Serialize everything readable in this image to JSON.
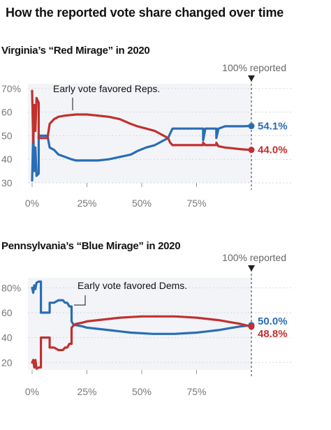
{
  "title": "How the reported vote share changed over time",
  "colors": {
    "rep": "#c0312f",
    "dem": "#2a6db4",
    "plot_bg": "#f2f4f8",
    "grid": "#d6d6d6"
  },
  "chart_data": [
    {
      "type": "line",
      "title": "Virginia’s “Red Mirage” in 2020",
      "reported_label": "100% reported",
      "annotation": "Early vote favored Reps.",
      "xlim": [
        0,
        100
      ],
      "ylim": [
        30,
        72
      ],
      "y_ticks": [
        30,
        40,
        50,
        60,
        70
      ],
      "y_tick_labels": [
        "30",
        "40",
        "50",
        "60",
        "70%"
      ],
      "x_ticks": [
        0,
        25,
        50,
        75
      ],
      "x_tick_labels": [
        "0%",
        "25%",
        "50%",
        "75%"
      ],
      "end_labels": [
        "54.1%",
        "44.0%"
      ],
      "series": [
        {
          "color": "dem",
          "end_value": 54.1,
          "points": [
            [
              0,
              31
            ],
            [
              0.5,
              52
            ],
            [
              1,
              35
            ],
            [
              1.5,
              45
            ],
            [
              2,
              33
            ],
            [
              3,
              34
            ],
            [
              3,
              50
            ],
            [
              7,
              50
            ],
            [
              8,
              45
            ],
            [
              10,
              44
            ],
            [
              12,
              42
            ],
            [
              15,
              41
            ],
            [
              18,
              40
            ],
            [
              20,
              39.5
            ],
            [
              30,
              39.5
            ],
            [
              35,
              40
            ],
            [
              40,
              41
            ],
            [
              45,
              42
            ],
            [
              48,
              43.5
            ],
            [
              52,
              45
            ],
            [
              56,
              46
            ],
            [
              58,
              47
            ],
            [
              60,
              48
            ],
            [
              62,
              49
            ],
            [
              63,
              51
            ],
            [
              64,
              53
            ],
            [
              78,
              53
            ],
            [
              78,
              48
            ],
            [
              79,
              53
            ],
            [
              84,
              53
            ],
            [
              84,
              49
            ],
            [
              85,
              53
            ],
            [
              88,
              54
            ],
            [
              96,
              54
            ],
            [
              100,
              54.1
            ]
          ]
        },
        {
          "color": "rep",
          "end_value": 44.0,
          "points": [
            [
              0,
              69
            ],
            [
              0.5,
              47
            ],
            [
              1,
              63
            ],
            [
              1.5,
              52
            ],
            [
              2,
              66
            ],
            [
              3,
              64
            ],
            [
              3,
              49
            ],
            [
              7,
              49
            ],
            [
              8,
              55
            ],
            [
              10,
              57
            ],
            [
              12,
              58
            ],
            [
              15,
              58.5
            ],
            [
              20,
              59
            ],
            [
              25,
              59
            ],
            [
              30,
              58.5
            ],
            [
              35,
              58
            ],
            [
              40,
              57
            ],
            [
              45,
              55
            ],
            [
              48,
              54
            ],
            [
              52,
              53
            ],
            [
              56,
              52
            ],
            [
              58,
              51
            ],
            [
              60,
              50
            ],
            [
              62,
              49
            ],
            [
              63,
              47
            ],
            [
              64,
              46
            ],
            [
              78,
              46
            ],
            [
              78,
              47
            ],
            [
              79,
              46
            ],
            [
              84,
              46
            ],
            [
              84,
              47
            ],
            [
              85,
              45.5
            ],
            [
              88,
              45
            ],
            [
              96,
              44.2
            ],
            [
              100,
              44.0
            ]
          ]
        }
      ]
    },
    {
      "type": "line",
      "title": "Pennsylvania’s “Blue Mirage” in 2020",
      "reported_label": "100% reported",
      "annotation": "Early vote favored Dems.",
      "xlim": [
        0,
        100
      ],
      "ylim": [
        14,
        88
      ],
      "y_ticks": [
        20,
        40,
        60,
        80
      ],
      "y_tick_labels": [
        "20",
        "40",
        "60",
        "80%"
      ],
      "x_ticks": [
        0,
        25,
        50,
        75
      ],
      "x_tick_labels": [
        "0%",
        "25%",
        "50%",
        "75%"
      ],
      "end_labels": [
        "50.0%",
        "48.8%"
      ],
      "series": [
        {
          "color": "dem",
          "end_value": 50.0,
          "points": [
            [
              0,
              80
            ],
            [
              0.5,
              76
            ],
            [
              1,
              82
            ],
            [
              1.5,
              79
            ],
            [
              2,
              84
            ],
            [
              3,
              85
            ],
            [
              4,
              85
            ],
            [
              4,
              60
            ],
            [
              8,
              60
            ],
            [
              8,
              68
            ],
            [
              10,
              68
            ],
            [
              12,
              70
            ],
            [
              14,
              70
            ],
            [
              15,
              68
            ],
            [
              16,
              68
            ],
            [
              17,
              65
            ],
            [
              18,
              65
            ],
            [
              18,
              53
            ],
            [
              19,
              50
            ],
            [
              20,
              50
            ],
            [
              23,
              49
            ],
            [
              25,
              48
            ],
            [
              30,
              47
            ],
            [
              35,
              46
            ],
            [
              40,
              45
            ],
            [
              45,
              44
            ],
            [
              50,
              43.5
            ],
            [
              55,
              43
            ],
            [
              60,
              43
            ],
            [
              65,
              43
            ],
            [
              70,
              43.5
            ],
            [
              75,
              44
            ],
            [
              80,
              45
            ],
            [
              85,
              46
            ],
            [
              90,
              47.5
            ],
            [
              95,
              49
            ],
            [
              100,
              50.0
            ]
          ]
        },
        {
          "color": "rep",
          "end_value": 48.8,
          "points": [
            [
              0,
              20
            ],
            [
              0.5,
              22
            ],
            [
              1,
              16
            ],
            [
              1.5,
              22
            ],
            [
              2,
              15
            ],
            [
              3,
              16
            ],
            [
              4,
              16
            ],
            [
              4,
              40
            ],
            [
              8,
              40
            ],
            [
              8,
              32
            ],
            [
              10,
              32
            ],
            [
              12,
              30
            ],
            [
              14,
              30
            ],
            [
              15,
              32
            ],
            [
              16,
              32
            ],
            [
              17,
              35
            ],
            [
              18,
              35
            ],
            [
              18,
              48
            ],
            [
              19,
              50
            ],
            [
              20,
              51
            ],
            [
              23,
              52
            ],
            [
              25,
              53
            ],
            [
              30,
              54
            ],
            [
              35,
              55
            ],
            [
              40,
              56
            ],
            [
              45,
              56.5
            ],
            [
              50,
              57
            ],
            [
              55,
              57
            ],
            [
              60,
              57
            ],
            [
              65,
              57
            ],
            [
              70,
              56.5
            ],
            [
              75,
              56
            ],
            [
              80,
              55
            ],
            [
              85,
              54
            ],
            [
              90,
              52.5
            ],
            [
              95,
              51
            ],
            [
              100,
              48.8
            ]
          ]
        }
      ]
    }
  ]
}
